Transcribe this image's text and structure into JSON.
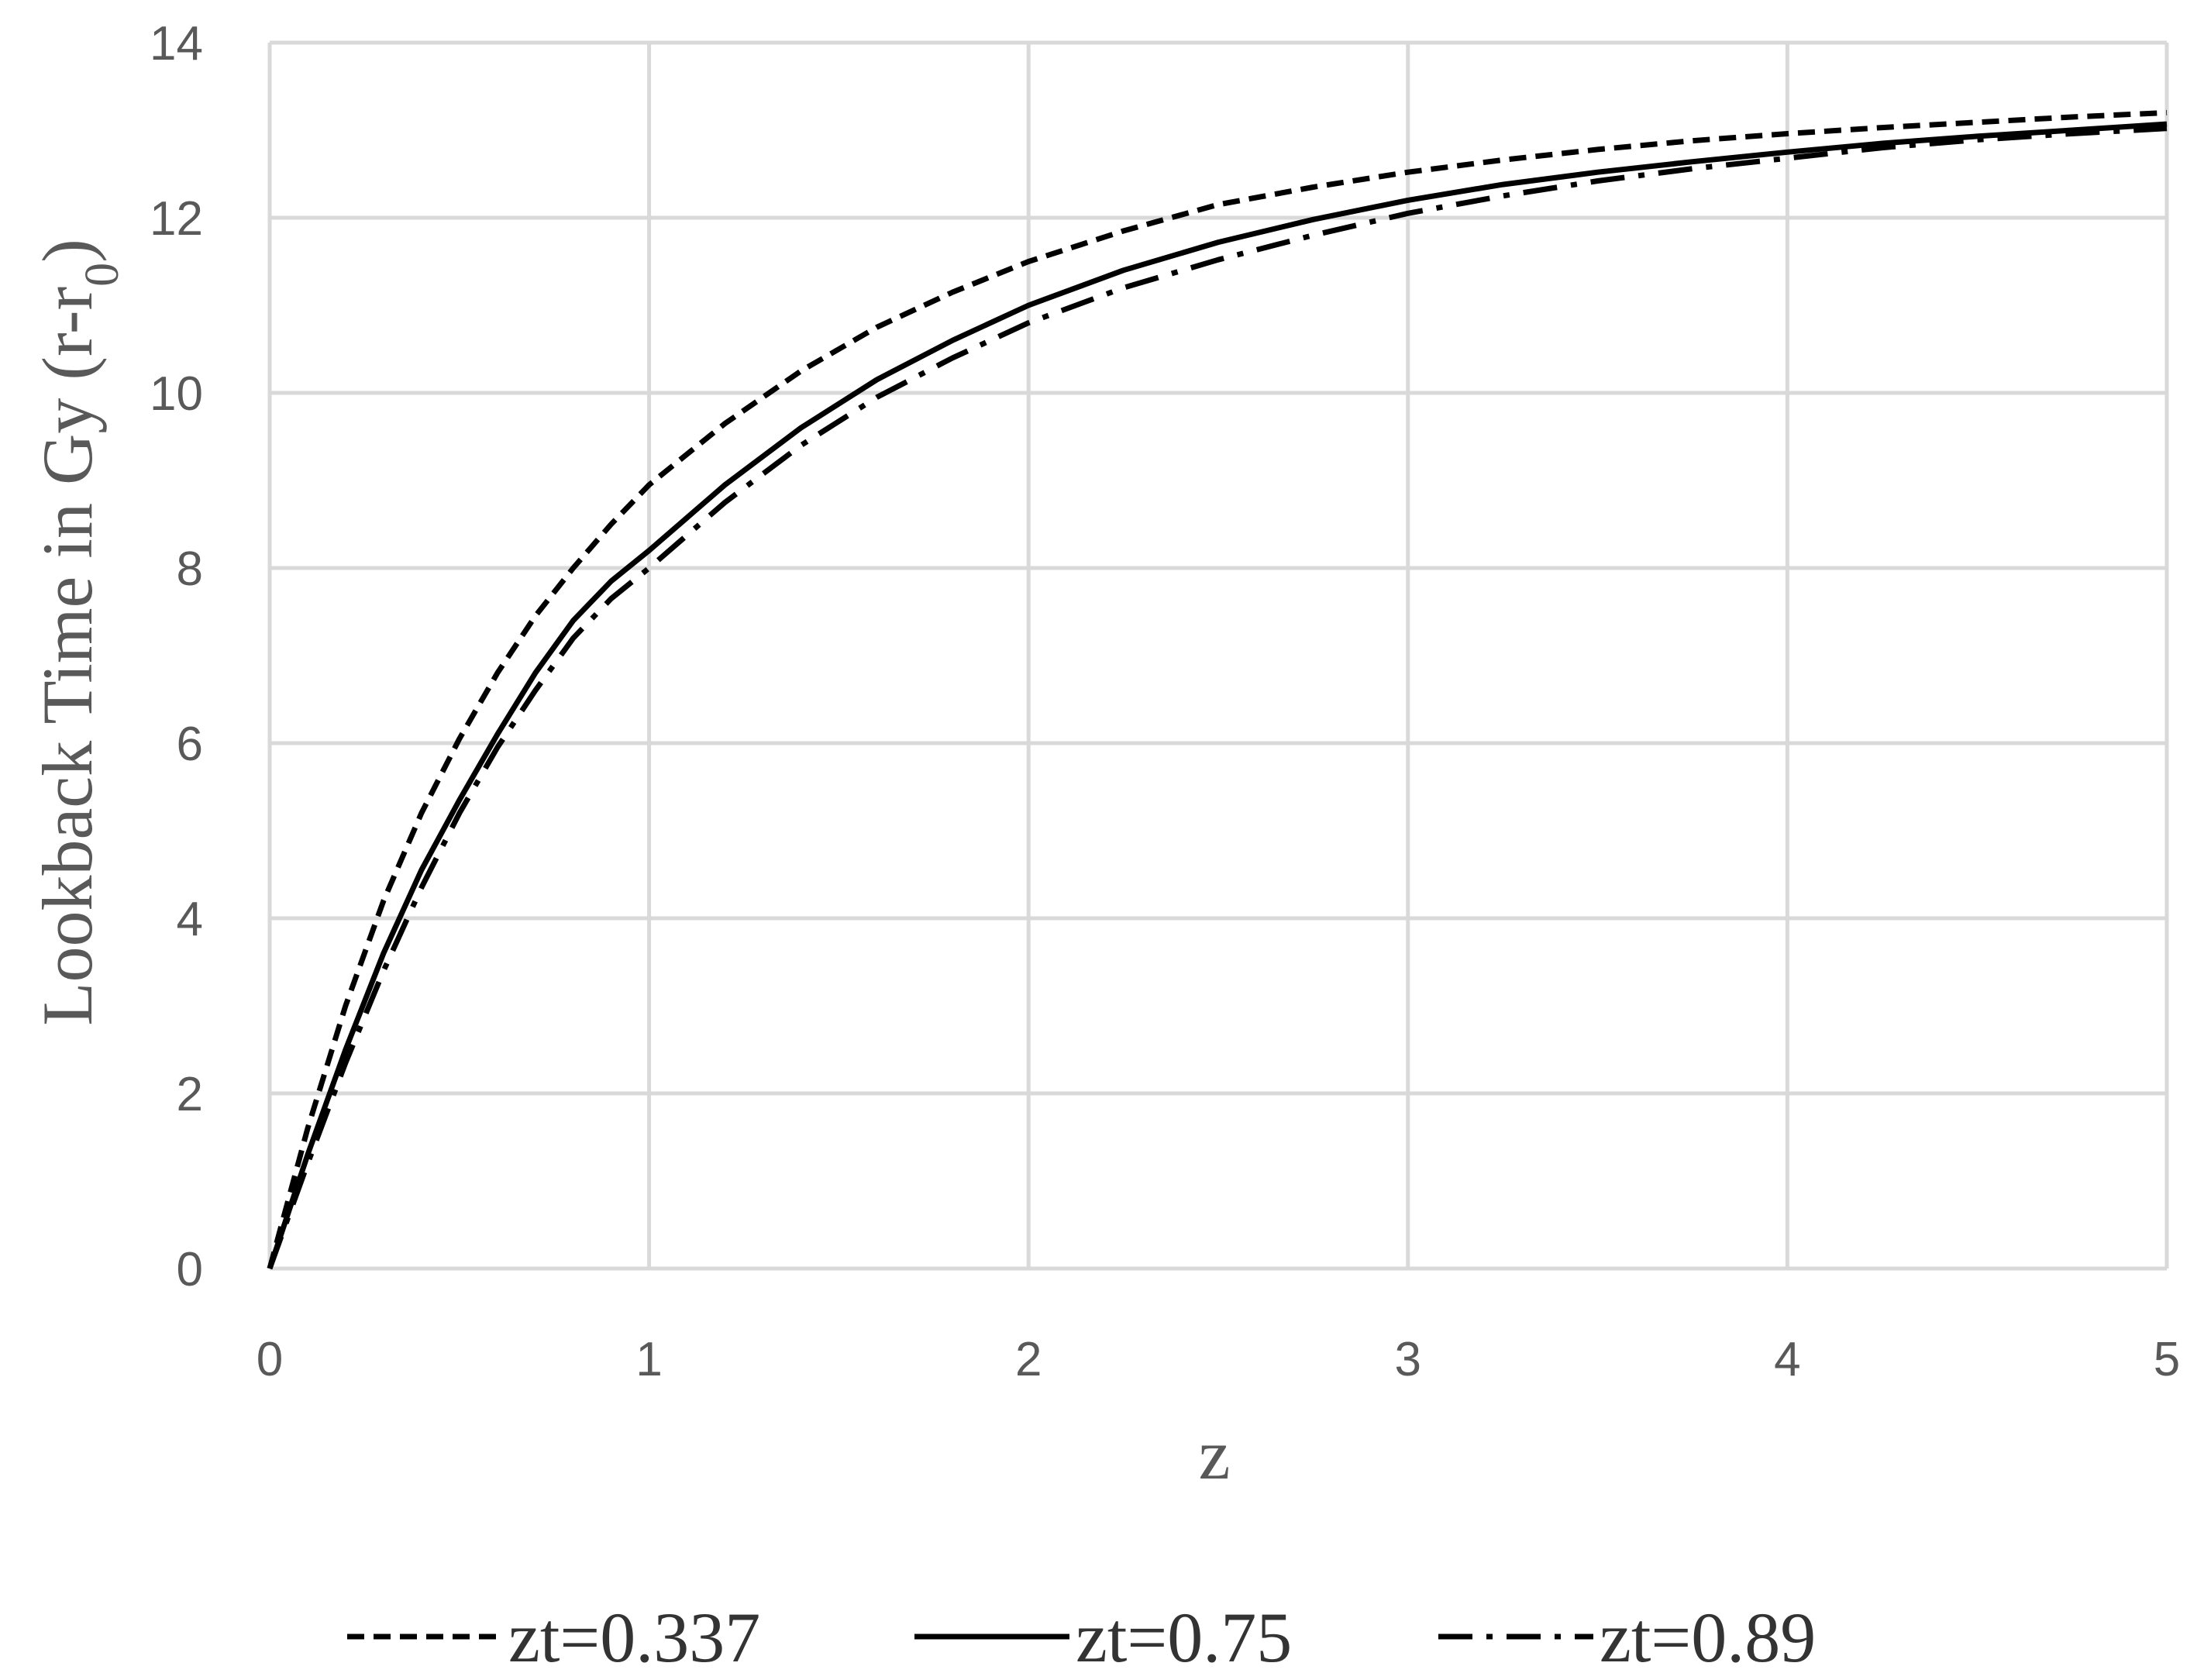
{
  "chart_data": {
    "type": "line",
    "title": "",
    "xlabel": "z",
    "ylabel_main": "Lookback Time in Gy (r-r",
    "ylabel_sub": "0",
    "ylabel_end": ")",
    "xlim": [
      0,
      5
    ],
    "ylim": [
      0,
      14
    ],
    "xticks": [
      0,
      1,
      2,
      3,
      4,
      5
    ],
    "yticks": [
      0,
      2,
      4,
      6,
      8,
      10,
      12,
      14
    ],
    "grid": true,
    "legend_position": "bottom",
    "x": [
      0,
      0.1,
      0.2,
      0.3,
      0.4,
      0.5,
      0.6,
      0.7,
      0.8,
      0.9,
      1.0,
      1.2,
      1.4,
      1.6,
      1.8,
      2.0,
      2.25,
      2.5,
      2.75,
      3.0,
      3.25,
      3.5,
      3.75,
      4.0,
      4.25,
      4.5,
      4.75,
      5.0
    ],
    "series": [
      {
        "name": "zt=0.337",
        "style": "dashed",
        "color": "#000000",
        "values": [
          0,
          1.6,
          3.0,
          4.2,
          5.2,
          6.05,
          6.8,
          7.45,
          8.0,
          8.5,
          8.95,
          9.65,
          10.25,
          10.75,
          11.15,
          11.5,
          11.85,
          12.15,
          12.35,
          12.52,
          12.66,
          12.78,
          12.88,
          12.96,
          13.03,
          13.09,
          13.15,
          13.2
        ]
      },
      {
        "name": "zt=0.75",
        "style": "solid",
        "color": "#000000",
        "values": [
          0,
          1.3,
          2.5,
          3.6,
          4.55,
          5.35,
          6.1,
          6.8,
          7.4,
          7.85,
          8.2,
          8.95,
          9.6,
          10.15,
          10.6,
          11.0,
          11.4,
          11.72,
          11.98,
          12.2,
          12.38,
          12.52,
          12.64,
          12.75,
          12.85,
          12.93,
          13.0,
          13.07
        ]
      },
      {
        "name": "zt=0.89",
        "style": "dashdot",
        "color": "#000000",
        "values": [
          0,
          1.2,
          2.35,
          3.4,
          4.35,
          5.2,
          5.95,
          6.6,
          7.2,
          7.65,
          8.0,
          8.75,
          9.4,
          9.95,
          10.4,
          10.8,
          11.2,
          11.52,
          11.8,
          12.05,
          12.25,
          12.42,
          12.56,
          12.68,
          12.8,
          12.89,
          12.96,
          13.02
        ]
      }
    ]
  }
}
